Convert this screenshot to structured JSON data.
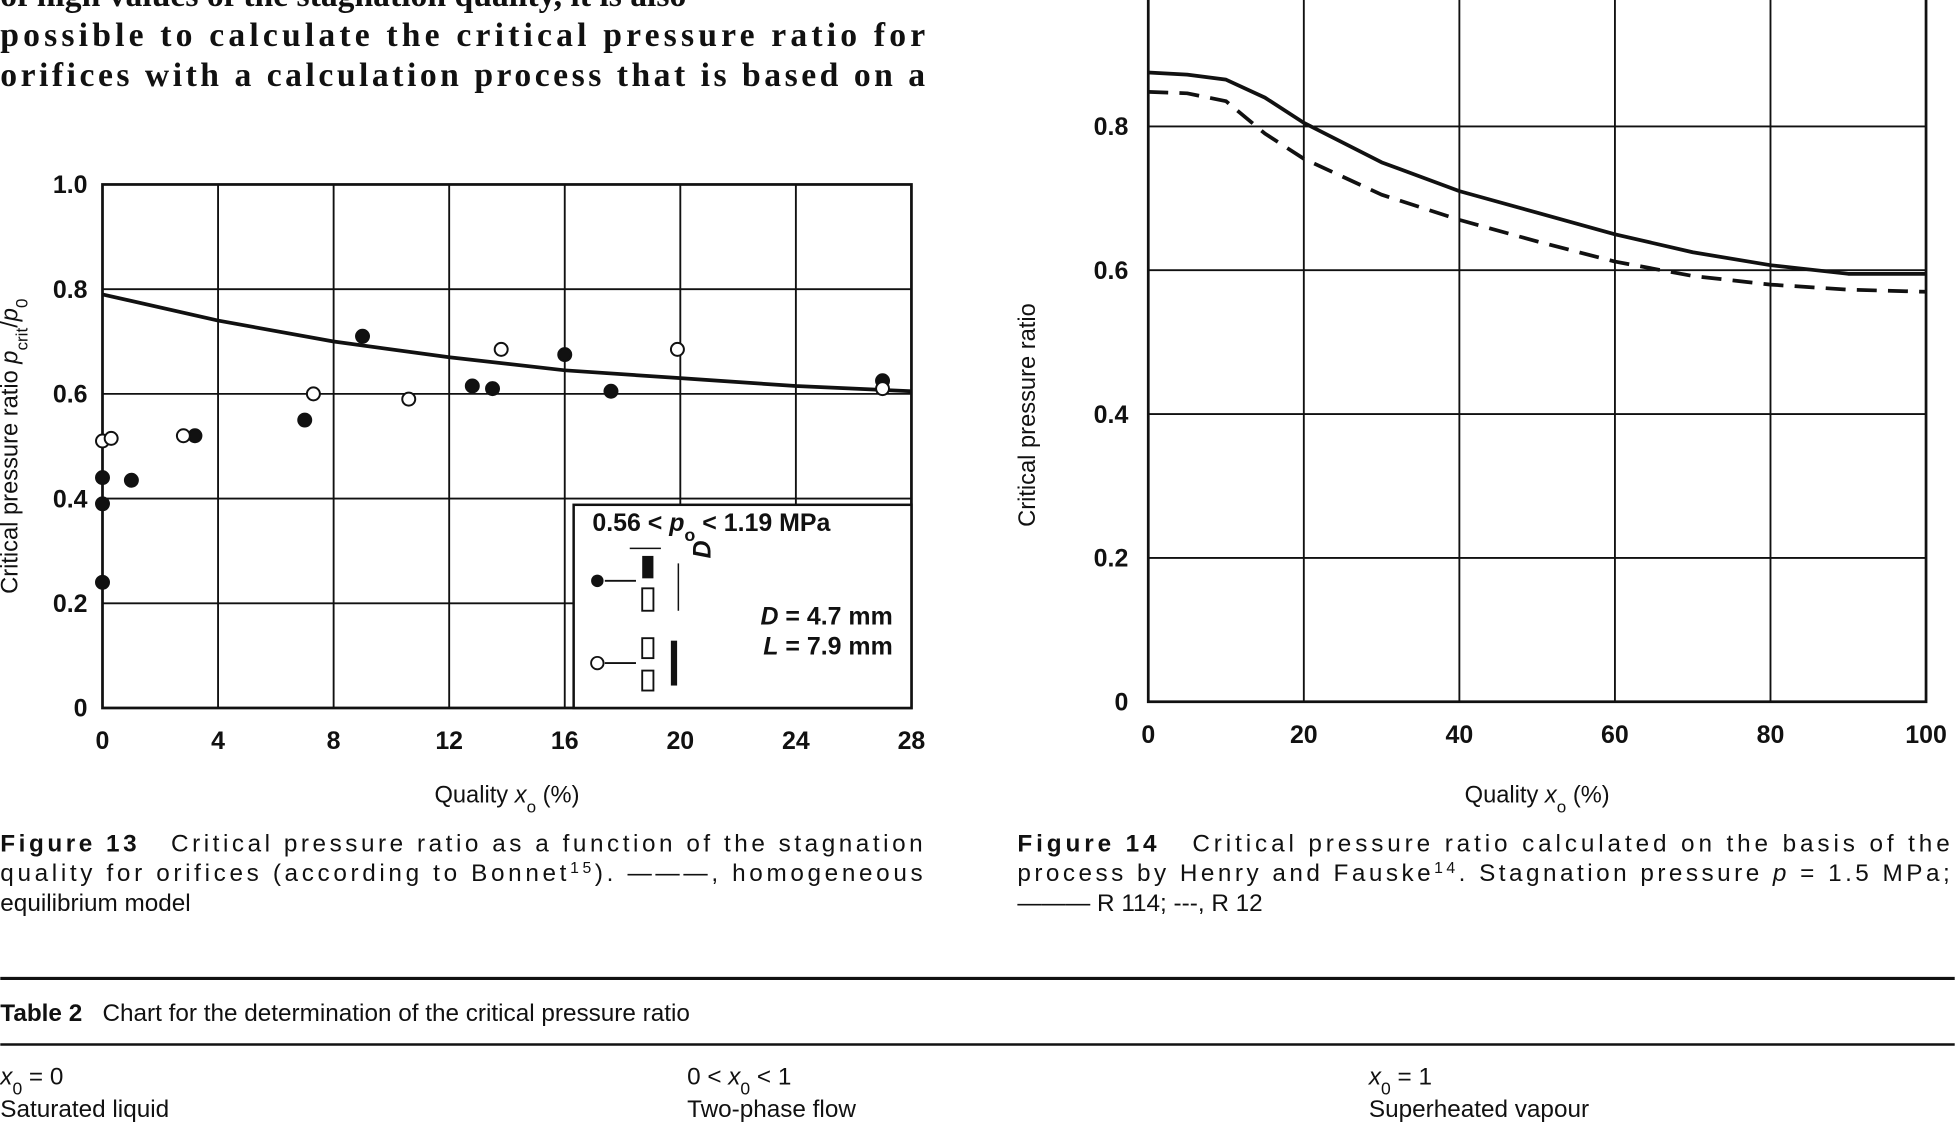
{
  "text": [
    "of high values of the stagnation quality, it is also",
    "possible to calculate the critical pressure ratio for",
    "orifices with a calculation process that is based on a"
  ],
  "chart_data": [
    {
      "type": "scatter",
      "xlabel": [
        {
          "t": "Quality "
        },
        {
          "t": "x",
          "s": "i"
        },
        {
          "t": "o",
          "s": "sub"
        },
        {
          "t": " (%)"
        }
      ],
      "ylabel": [
        {
          "t": "Critical pressure ratio "
        },
        {
          "t": "p",
          "s": "i"
        },
        {
          "t": "crit",
          "s": "sub"
        },
        {
          "t": "/"
        },
        {
          "t": "p",
          "s": "i"
        },
        {
          "t": "0",
          "s": "sub"
        }
      ],
      "xlim": [
        0,
        28
      ],
      "xticks": [
        0,
        4,
        8,
        12,
        16,
        20,
        24,
        28
      ],
      "ylim": [
        0,
        1
      ],
      "yticks": [
        0,
        0.2,
        0.4,
        0.6,
        0.8,
        {
          "value": 1,
          "label": "1.0"
        }
      ],
      "grid": true,
      "series": [
        {
          "mark": "line",
          "color": "#111111",
          "x": [
            0,
            4,
            8,
            12,
            16,
            20,
            24,
            28
          ],
          "values": [
            0.79,
            0.74,
            0.7,
            0.67,
            0.645,
            0.63,
            0.615,
            0.605
          ]
        },
        {
          "mark": "point",
          "color": "#111111",
          "filled": true,
          "x": [
            0,
            0,
            0,
            1,
            3.2,
            7,
            9,
            12.8,
            13.5,
            16,
            17.6,
            27
          ],
          "values": [
            0.24,
            0.39,
            0.44,
            0.435,
            0.52,
            0.55,
            0.71,
            0.615,
            0.61,
            0.675,
            0.605,
            0.625
          ]
        },
        {
          "mark": "point",
          "color": "#111111",
          "filled": false,
          "x": [
            0,
            0.3,
            2.8,
            7.3,
            10.6,
            13.8,
            19.9,
            27
          ],
          "values": [
            0.51,
            0.515,
            0.52,
            0.6,
            0.59,
            0.685,
            0.685,
            0.61
          ]
        }
      ],
      "inset": {
        "range": [
          {
            "t": "0.56 < "
          },
          {
            "t": "p",
            "s": "i"
          },
          {
            "t": "o",
            "s": "sub"
          },
          {
            "t": " < 1.19 MPa"
          }
        ],
        "dims": [
          [
            {
              "t": "D",
              "s": "i"
            },
            {
              "t": " = 4.7 mm"
            }
          ],
          [
            {
              "t": "L",
              "s": "i"
            },
            {
              "t": " = 7.9 mm"
            }
          ]
        ],
        "symbol": "D"
      },
      "caption": [
        [
          {
            "t": "Figure 13",
            "s": "b"
          },
          {
            "t": "   Critical pressure ratio as a function of the stagnation"
          }
        ],
        [
          {
            "t": "quality for orifices (according to Bonnet"
          },
          {
            "t": "15",
            "s": "sup"
          },
          {
            "t": "). ———, homogeneous"
          }
        ],
        [
          {
            "t": "equilibrium model"
          }
        ]
      ]
    },
    {
      "type": "line",
      "xlabel": [
        {
          "t": "Quality "
        },
        {
          "t": "x",
          "s": "i"
        },
        {
          "t": "o",
          "s": "sub"
        },
        {
          "t": " (%)"
        }
      ],
      "ylabel": [
        {
          "t": "Critical pressure ratio"
        }
      ],
      "xlim": [
        0,
        100
      ],
      "xticks": [
        0,
        20,
        40,
        60,
        80,
        100
      ],
      "ylim": [
        0,
        1
      ],
      "yticks": [
        0,
        0.2,
        0.4,
        0.6,
        0.8
      ],
      "grid": true,
      "series": [
        {
          "mark": "line",
          "color": "#111111",
          "dash": false,
          "x": [
            0,
            5,
            10,
            15,
            20,
            30,
            40,
            50,
            60,
            70,
            80,
            90,
            100
          ],
          "values": [
            0.875,
            0.872,
            0.865,
            0.84,
            0.805,
            0.75,
            0.71,
            0.68,
            0.65,
            0.625,
            0.607,
            0.595,
            0.595
          ]
        },
        {
          "mark": "line",
          "color": "#111111",
          "dash": true,
          "x": [
            0,
            5,
            10,
            15,
            20,
            30,
            40,
            50,
            60,
            70,
            80,
            90,
            100
          ],
          "values": [
            0.848,
            0.846,
            0.835,
            0.79,
            0.755,
            0.705,
            0.67,
            0.64,
            0.612,
            0.592,
            0.58,
            0.573,
            0.57
          ]
        }
      ],
      "caption": [
        [
          {
            "t": "Figure 14",
            "s": "b"
          },
          {
            "t": "   Critical pressure ratio calculated on the basis of the"
          }
        ],
        [
          {
            "t": "process by Henry and Fauske"
          },
          {
            "t": "14",
            "s": "sup"
          },
          {
            "t": ". Stagnation pressure "
          },
          {
            "t": "p",
            "s": "i"
          },
          {
            "t": " = 1.5 MPa;"
          }
        ],
        [
          {
            "t": "——— R 114; ---, R 12"
          }
        ]
      ]
    }
  ],
  "table": {
    "title": [
      {
        "t": "Table 2",
        "s": "b"
      },
      {
        "t": "   Chart for the determination of the critical pressure ratio"
      }
    ],
    "columns": [
      [
        [
          {
            "t": "x",
            "s": "i"
          },
          {
            "t": "0",
            "s": "sub"
          },
          {
            "t": " = 0"
          }
        ],
        [
          {
            "t": "Saturated liquid"
          }
        ]
      ],
      [
        [
          {
            "t": "0 < "
          },
          {
            "t": "x",
            "s": "i"
          },
          {
            "t": "0",
            "s": "sub"
          },
          {
            "t": " < 1"
          }
        ],
        [
          {
            "t": "Two-phase flow"
          }
        ]
      ],
      [
        [
          {
            "t": "x",
            "s": "i"
          },
          {
            "t": "0",
            "s": "sub"
          },
          {
            "t": " = 1"
          }
        ],
        [
          {
            "t": "Superheated vapour"
          }
        ]
      ]
    ]
  }
}
